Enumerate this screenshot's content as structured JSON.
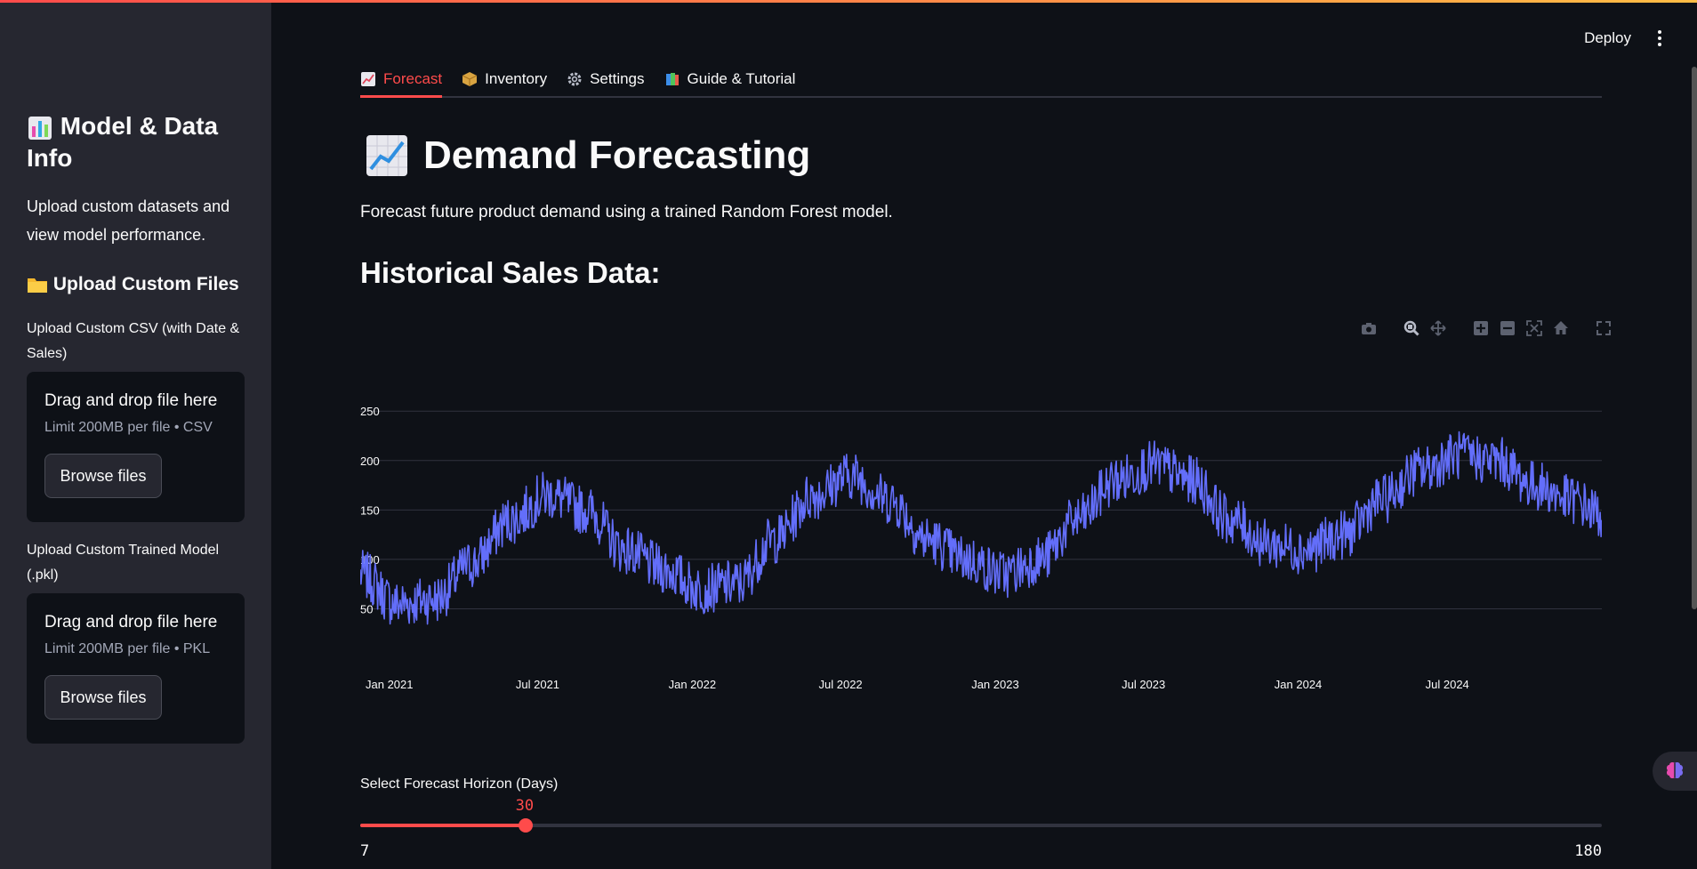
{
  "sidebar": {
    "title": "Model & Data Info",
    "description": "Upload custom datasets and view model performance.",
    "upload_heading": "Upload Custom Files",
    "csv_label": "Upload Custom CSV (with Date & Sales)",
    "csv_drop_title": "Drag and drop file here",
    "csv_limit": "Limit 200MB per file • CSV",
    "csv_browse": "Browse files",
    "pkl_label": "Upload Custom Trained Model (.pkl)",
    "pkl_drop_title": "Drag and drop file here",
    "pkl_limit": "Limit 200MB per file • PKL",
    "pkl_browse": "Browse files"
  },
  "header": {
    "deploy_label": "Deploy"
  },
  "tabs": [
    {
      "label": "Forecast",
      "active": true
    },
    {
      "label": "Inventory",
      "active": false
    },
    {
      "label": "Settings",
      "active": false
    },
    {
      "label": "Guide & Tutorial",
      "active": false
    }
  ],
  "main": {
    "title": "Demand Forecasting",
    "subtitle": "Forecast future product demand using a trained Random Forest model.",
    "historical_heading": "Historical Sales Data:"
  },
  "slider": {
    "label": "Select Forecast Horizon (Days)",
    "min": 7,
    "max": 180,
    "value": 30,
    "min_label": "7",
    "max_label": "180",
    "value_label": "30"
  },
  "colors": {
    "accent": "#ff4b4b",
    "line": "#636efa",
    "background": "#0e1117",
    "sidebar": "#262730"
  },
  "chart_data": {
    "type": "line",
    "title": "",
    "xlabel": "",
    "ylabel": "",
    "x_ticks": [
      "Jan 2021",
      "Jul 2021",
      "Jan 2022",
      "Jul 2022",
      "Jan 2023",
      "Jul 2023",
      "Jan 2024",
      "Jul 2024"
    ],
    "y_ticks": [
      50,
      100,
      150,
      200,
      250
    ],
    "ylim": [
      0,
      270
    ],
    "xlim": [
      "2021-01-01",
      "2025-02-05"
    ],
    "grid": true,
    "series": [
      {
        "x": [
          "2021-01-01",
          "2021-02-15",
          "2021-04-01",
          "2021-05-15",
          "2021-07-01",
          "2021-08-15",
          "2021-10-01",
          "2021-11-15",
          "2022-01-01",
          "2022-02-15",
          "2022-04-01",
          "2022-05-15",
          "2022-07-01",
          "2022-08-15",
          "2022-10-01",
          "2022-11-15",
          "2023-01-01",
          "2023-02-15",
          "2023-04-01",
          "2023-05-15",
          "2023-07-01",
          "2023-08-15",
          "2023-10-01",
          "2023-11-15",
          "2024-01-01",
          "2024-02-15",
          "2024-04-01",
          "2024-05-15",
          "2024-07-01",
          "2024-08-15",
          "2024-10-01",
          "2024-11-15",
          "2025-01-01",
          "2025-02-05"
        ],
        "values": [
          85,
          55,
          60,
          95,
          140,
          165,
          150,
          110,
          90,
          70,
          75,
          120,
          165,
          185,
          160,
          120,
          100,
          85,
          100,
          140,
          180,
          195,
          180,
          140,
          115,
          110,
          125,
          160,
          190,
          205,
          200,
          175,
          160,
          145
        ]
      }
    ]
  }
}
